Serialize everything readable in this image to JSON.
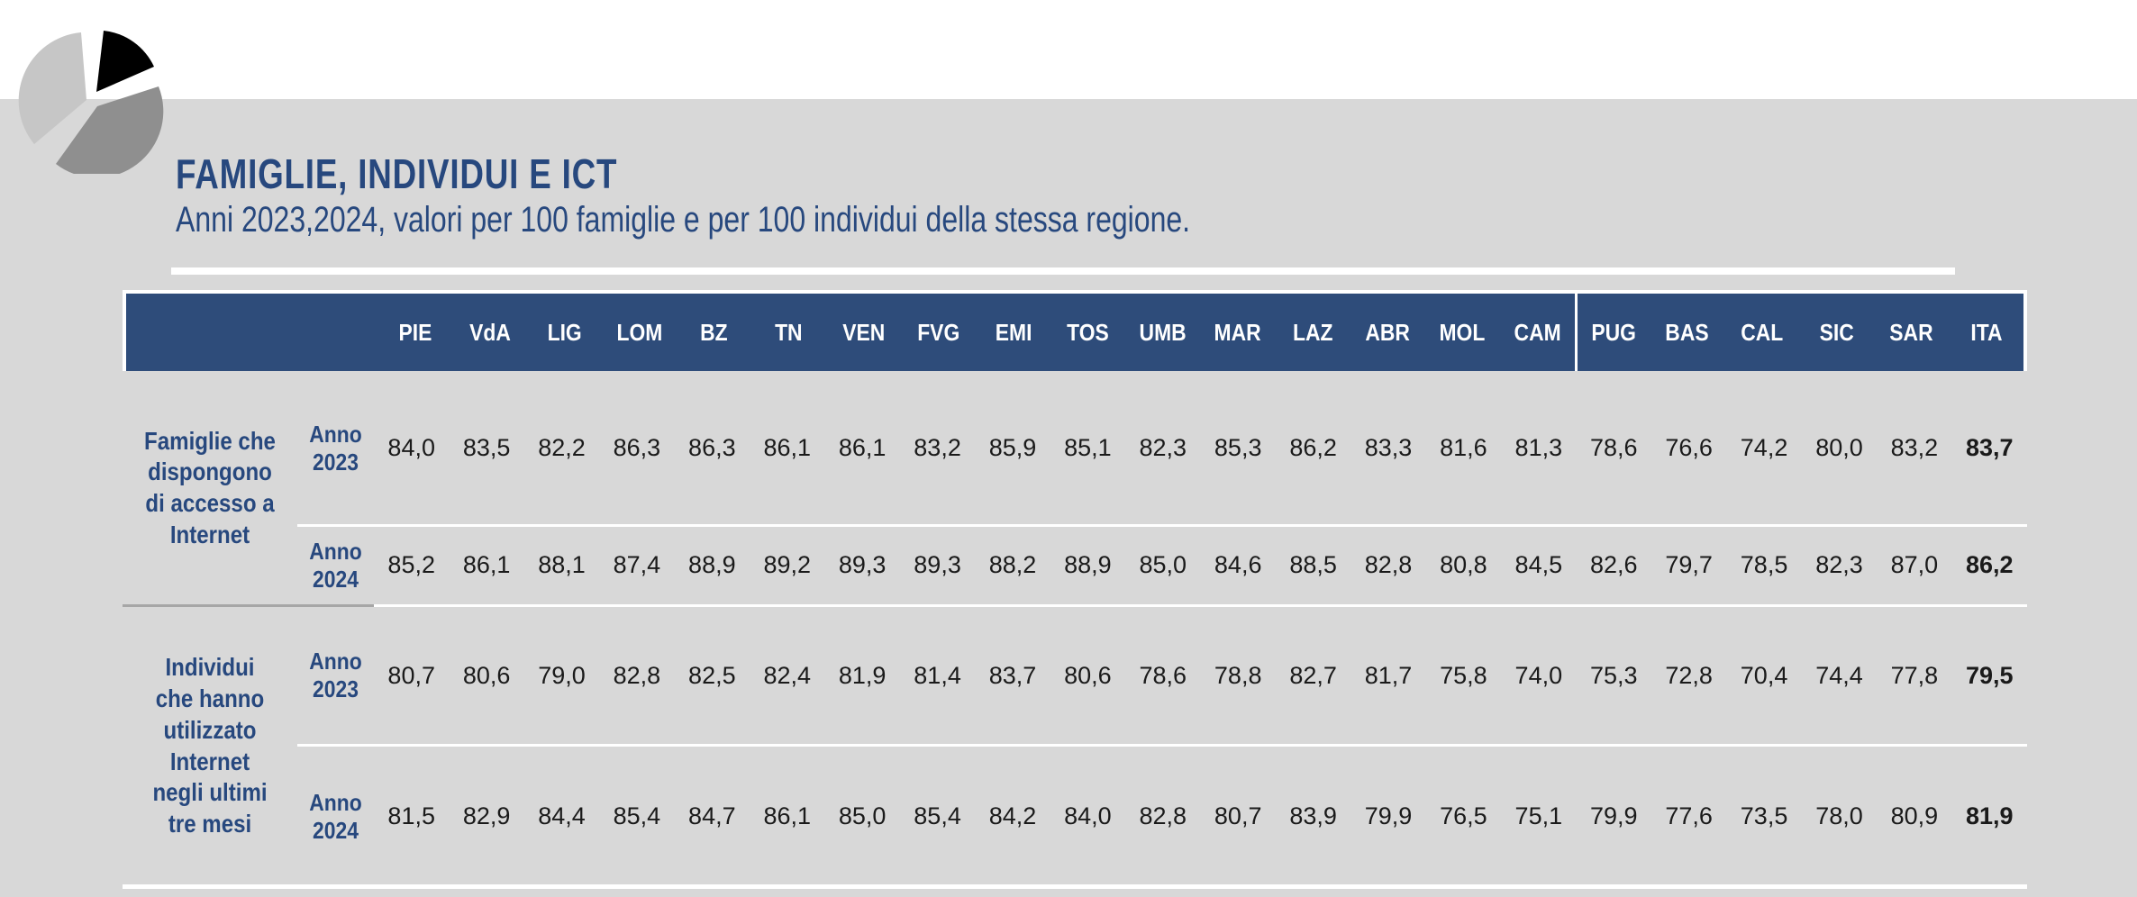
{
  "page": {
    "title": "FAMIGLIE, INDIVIDUI E ICT",
    "subtitle": "Anni 2023,2024, valori per 100 famiglie e per 100 individui della stessa regione."
  },
  "colors": {
    "page_background": "#d8d8d8",
    "top_band": "#ffffff",
    "header_background": "#2e4c7a",
    "accent_text": "#27487e",
    "value_text": "#1a1a1a"
  },
  "logo": {
    "description": "exploded pie-chart logo",
    "colors": {
      "light": "#c6c6c6",
      "black": "#000000",
      "medium": "#8f8f8f"
    }
  },
  "table": {
    "columns": [
      "PIE",
      "VdA",
      "LIG",
      "LOM",
      "BZ",
      "TN",
      "VEN",
      "FVG",
      "EMI",
      "TOS",
      "UMB",
      "MAR",
      "LAZ",
      "ABR",
      "MOL",
      "CAM",
      "PUG",
      "BAS",
      "CAL",
      "SIC",
      "SAR",
      "ITA"
    ],
    "divider_before": "PUG",
    "groups": [
      {
        "label": "Famiglie che\ndispongono\ndi accesso a\nInternet",
        "rows": [
          {
            "year_label": "Anno\n2023",
            "values": [
              "84,0",
              "83,5",
              "82,2",
              "86,3",
              "86,3",
              "86,1",
              "86,1",
              "83,2",
              "85,9",
              "85,1",
              "82,3",
              "85,3",
              "86,2",
              "83,3",
              "81,6",
              "81,3",
              "78,6",
              "76,6",
              "74,2",
              "80,0",
              "83,2",
              "83,7"
            ]
          },
          {
            "year_label": "Anno\n2024",
            "values": [
              "85,2",
              "86,1",
              "88,1",
              "87,4",
              "88,9",
              "89,2",
              "89,3",
              "89,3",
              "88,2",
              "88,9",
              "85,0",
              "84,6",
              "88,5",
              "82,8",
              "80,8",
              "84,5",
              "82,6",
              "79,7",
              "78,5",
              "82,3",
              "87,0",
              "86,2"
            ]
          }
        ]
      },
      {
        "label": "Individui\nche hanno\nutilizzato\nInternet\nnegli ultimi\ntre mesi",
        "rows": [
          {
            "year_label": "Anno\n2023",
            "values": [
              "80,7",
              "80,6",
              "79,0",
              "82,8",
              "82,5",
              "82,4",
              "81,9",
              "81,4",
              "83,7",
              "80,6",
              "78,6",
              "78,8",
              "82,7",
              "81,7",
              "75,8",
              "74,0",
              "75,3",
              "72,8",
              "70,4",
              "74,4",
              "77,8",
              "79,5"
            ]
          },
          {
            "year_label": "Anno\n2024",
            "values": [
              "81,5",
              "82,9",
              "84,4",
              "85,4",
              "84,7",
              "86,1",
              "85,0",
              "85,4",
              "84,2",
              "84,0",
              "82,8",
              "80,7",
              "83,9",
              "79,9",
              "76,5",
              "75,1",
              "79,9",
              "77,6",
              "73,5",
              "78,0",
              "80,9",
              "81,9"
            ]
          }
        ]
      }
    ]
  },
  "chart_data": {
    "type": "table",
    "title": "FAMIGLIE, INDIVIDUI E ICT",
    "subtitle": "Anni 2023,2024, valori per 100 famiglie e per 100 individui della stessa regione.",
    "columns": [
      "PIE",
      "VdA",
      "LIG",
      "LOM",
      "BZ",
      "TN",
      "VEN",
      "FVG",
      "EMI",
      "TOS",
      "UMB",
      "MAR",
      "LAZ",
      "ABR",
      "MOL",
      "CAM",
      "PUG",
      "BAS",
      "CAL",
      "SIC",
      "SAR",
      "ITA"
    ],
    "rows": [
      {
        "group": "Famiglie che dispongono di accesso a Internet",
        "year": "Anno 2023",
        "values": [
          84.0,
          83.5,
          82.2,
          86.3,
          86.3,
          86.1,
          86.1,
          83.2,
          85.9,
          85.1,
          82.3,
          85.3,
          86.2,
          83.3,
          81.6,
          81.3,
          78.6,
          76.6,
          74.2,
          80.0,
          83.2,
          83.7
        ]
      },
      {
        "group": "Famiglie che dispongono di accesso a Internet",
        "year": "Anno 2024",
        "values": [
          85.2,
          86.1,
          88.1,
          87.4,
          88.9,
          89.2,
          89.3,
          89.3,
          88.2,
          88.9,
          85.0,
          84.6,
          88.5,
          82.8,
          80.8,
          84.5,
          82.6,
          79.7,
          78.5,
          82.3,
          87.0,
          86.2
        ]
      },
      {
        "group": "Individui che hanno utilizzato Internet negli ultimi tre mesi",
        "year": "Anno 2023",
        "values": [
          80.7,
          80.6,
          79.0,
          82.8,
          82.5,
          82.4,
          81.9,
          81.4,
          83.7,
          80.6,
          78.6,
          78.8,
          82.7,
          81.7,
          75.8,
          74.0,
          75.3,
          72.8,
          70.4,
          74.4,
          77.8,
          79.5
        ]
      },
      {
        "group": "Individui che hanno utilizzato Internet negli ultimi tre mesi",
        "year": "Anno 2024",
        "values": [
          81.5,
          82.9,
          84.4,
          85.4,
          84.7,
          86.1,
          85.0,
          85.4,
          84.2,
          84.0,
          82.8,
          80.7,
          83.9,
          79.9,
          76.5,
          75.1,
          79.9,
          77.6,
          73.5,
          78.0,
          80.9,
          81.9
        ]
      }
    ]
  }
}
